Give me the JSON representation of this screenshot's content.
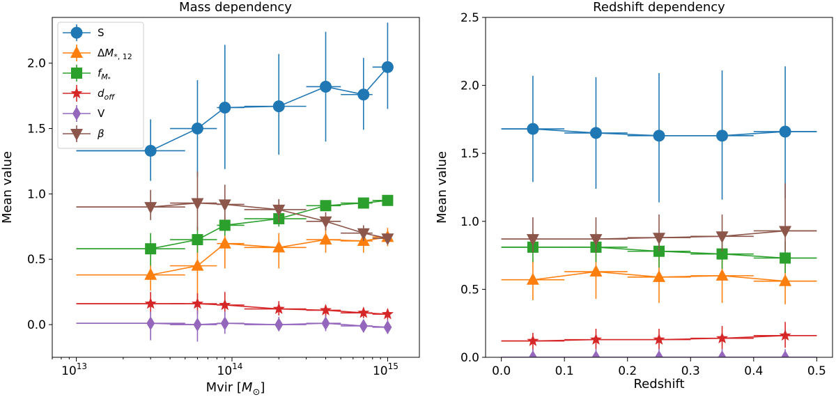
{
  "chart_data": [
    {
      "type": "scatter",
      "title": "Mass dependency",
      "xlabel": "Mvir [M⊙]",
      "ylabel": "Mean value",
      "xscale": "log",
      "xlim": [
        7000000000000.0,
        1600000000000000.0
      ],
      "ylim": [
        -0.25,
        2.35
      ],
      "xticks": [
        10000000000000.0,
        100000000000000.0,
        1000000000000000.0
      ],
      "xtick_labels": [
        "10",
        "10",
        "10"
      ],
      "xtick_exponents": [
        "13",
        "14",
        "15"
      ],
      "yticks": [
        0.0,
        0.5,
        1.0,
        1.5,
        2.0
      ],
      "ytick_labels": [
        "0.0",
        "0.5",
        "1.0",
        "1.5",
        "2.0"
      ],
      "legend": {
        "location": "upper-left"
      },
      "series": [
        {
          "name": "S",
          "color": "#1f77b4",
          "marker": "circle",
          "x": [
            30000000000000.0,
            60000000000000.0,
            90000000000000.0,
            200000000000000.0,
            400000000000000.0,
            700000000000000.0,
            1000000000000000.0
          ],
          "y": [
            1.33,
            1.5,
            1.66,
            1.67,
            1.82,
            1.76,
            1.97
          ],
          "xlo": [
            10000000000000.0,
            40000000000000.0,
            80000000000000.0,
            120000000000000.0,
            300000000000000.0,
            500000000000000.0,
            800000000000000.0
          ],
          "xhi": [
            50000000000000.0,
            80000000000000.0,
            120000000000000.0,
            300000000000000.0,
            500000000000000.0,
            800000000000000.0,
            1000000000000000.0
          ],
          "ylo": [
            1.1,
            1.13,
            1.19,
            1.3,
            1.4,
            1.49,
            1.65
          ],
          "yhi": [
            1.57,
            1.87,
            2.14,
            2.07,
            2.24,
            2.04,
            2.31
          ],
          "line_x": [
            10000000000000.0,
            30000000000000.0,
            60000000000000.0,
            90000000000000.0,
            200000000000000.0,
            400000000000000.0,
            700000000000000.0,
            1000000000000000.0
          ],
          "line_y": [
            1.33,
            1.33,
            1.5,
            1.66,
            1.67,
            1.82,
            1.76,
            1.97
          ]
        },
        {
          "name": "ΔM*, 12",
          "color": "#ff7f0e",
          "marker": "triangle-up",
          "x": [
            30000000000000.0,
            60000000000000.0,
            90000000000000.0,
            200000000000000.0,
            400000000000000.0,
            700000000000000.0,
            1000000000000000.0
          ],
          "y": [
            0.38,
            0.45,
            0.62,
            0.59,
            0.65,
            0.64,
            0.67
          ],
          "xlo": [
            10000000000000.0,
            40000000000000.0,
            80000000000000.0,
            120000000000000.0,
            300000000000000.0,
            500000000000000.0,
            800000000000000.0
          ],
          "xhi": [
            50000000000000.0,
            80000000000000.0,
            120000000000000.0,
            300000000000000.0,
            500000000000000.0,
            800000000000000.0,
            1000000000000000.0
          ],
          "ylo": [
            0.26,
            0.2,
            0.43,
            0.43,
            0.55,
            0.55,
            0.6
          ],
          "yhi": [
            0.5,
            0.65,
            0.75,
            0.7,
            0.75,
            0.73,
            0.74
          ],
          "line_x": [
            10000000000000.0,
            30000000000000.0,
            60000000000000.0,
            90000000000000.0,
            200000000000000.0,
            400000000000000.0,
            700000000000000.0,
            1000000000000000.0
          ],
          "line_y": [
            0.38,
            0.38,
            0.45,
            0.62,
            0.59,
            0.65,
            0.64,
            0.67
          ]
        },
        {
          "name": "fM*",
          "color": "#2ca02c",
          "marker": "square",
          "x": [
            30000000000000.0,
            60000000000000.0,
            90000000000000.0,
            200000000000000.0,
            400000000000000.0,
            700000000000000.0,
            1000000000000000.0
          ],
          "y": [
            0.58,
            0.65,
            0.76,
            0.81,
            0.91,
            0.93,
            0.95
          ],
          "xlo": [
            10000000000000.0,
            40000000000000.0,
            80000000000000.0,
            120000000000000.0,
            300000000000000.0,
            500000000000000.0,
            800000000000000.0
          ],
          "xhi": [
            50000000000000.0,
            80000000000000.0,
            120000000000000.0,
            300000000000000.0,
            500000000000000.0,
            800000000000000.0,
            1000000000000000.0
          ],
          "ylo": [
            0.45,
            0.55,
            0.68,
            0.75,
            0.87,
            0.9,
            0.93
          ],
          "yhi": [
            0.7,
            0.75,
            0.85,
            0.87,
            0.95,
            0.96,
            0.98
          ],
          "line_x": [
            10000000000000.0,
            30000000000000.0,
            60000000000000.0,
            90000000000000.0,
            200000000000000.0,
            400000000000000.0,
            700000000000000.0,
            1000000000000000.0
          ],
          "line_y": [
            0.58,
            0.58,
            0.65,
            0.76,
            0.81,
            0.91,
            0.93,
            0.95
          ]
        },
        {
          "name": "doff",
          "color": "#d62728",
          "marker": "star",
          "x": [
            30000000000000.0,
            60000000000000.0,
            90000000000000.0,
            200000000000000.0,
            400000000000000.0,
            700000000000000.0,
            1000000000000000.0
          ],
          "y": [
            0.16,
            0.16,
            0.15,
            0.12,
            0.11,
            0.09,
            0.08
          ],
          "xlo": [
            10000000000000.0,
            40000000000000.0,
            80000000000000.0,
            120000000000000.0,
            300000000000000.0,
            500000000000000.0,
            800000000000000.0
          ],
          "xhi": [
            50000000000000.0,
            80000000000000.0,
            120000000000000.0,
            300000000000000.0,
            500000000000000.0,
            800000000000000.0,
            1000000000000000.0
          ],
          "ylo": [
            0.08,
            0.08,
            0.07,
            0.07,
            0.06,
            0.05,
            0.04
          ],
          "yhi": [
            0.25,
            0.24,
            0.25,
            0.18,
            0.15,
            0.13,
            0.12
          ],
          "line_x": [
            10000000000000.0,
            30000000000000.0,
            60000000000000.0,
            90000000000000.0,
            200000000000000.0,
            400000000000000.0,
            700000000000000.0,
            1000000000000000.0
          ],
          "line_y": [
            0.16,
            0.16,
            0.16,
            0.15,
            0.12,
            0.11,
            0.09,
            0.08
          ]
        },
        {
          "name": "V",
          "color": "#9467bd",
          "marker": "thin-diamond",
          "x": [
            30000000000000.0,
            60000000000000.0,
            90000000000000.0,
            200000000000000.0,
            400000000000000.0,
            700000000000000.0,
            1000000000000000.0
          ],
          "y": [
            0.01,
            0.0,
            0.01,
            0.0,
            0.01,
            -0.01,
            -0.02
          ],
          "xlo": [
            10000000000000.0,
            40000000000000.0,
            80000000000000.0,
            120000000000000.0,
            300000000000000.0,
            500000000000000.0,
            800000000000000.0
          ],
          "xhi": [
            50000000000000.0,
            80000000000000.0,
            120000000000000.0,
            300000000000000.0,
            500000000000000.0,
            800000000000000.0,
            1000000000000000.0
          ],
          "ylo": [
            -0.12,
            -0.13,
            -0.07,
            -0.05,
            -0.05,
            -0.06,
            -0.07
          ],
          "yhi": [
            0.1,
            0.11,
            0.1,
            0.06,
            0.07,
            0.04,
            0.04
          ],
          "line_x": [
            10000000000000.0,
            30000000000000.0,
            60000000000000.0,
            90000000000000.0,
            200000000000000.0,
            400000000000000.0,
            700000000000000.0,
            1000000000000000.0
          ],
          "line_y": [
            0.01,
            0.01,
            0.0,
            0.01,
            0.0,
            0.01,
            -0.01,
            -0.02
          ]
        },
        {
          "name": "β",
          "color": "#8c564b",
          "marker": "triangle-down",
          "x": [
            30000000000000.0,
            60000000000000.0,
            90000000000000.0,
            200000000000000.0,
            400000000000000.0,
            700000000000000.0,
            1000000000000000.0
          ],
          "y": [
            0.9,
            0.93,
            0.92,
            0.88,
            0.79,
            0.7,
            0.66
          ],
          "xlo": [
            10000000000000.0,
            40000000000000.0,
            80000000000000.0,
            120000000000000.0,
            300000000000000.0,
            500000000000000.0,
            800000000000000.0
          ],
          "xhi": [
            50000000000000.0,
            80000000000000.0,
            120000000000000.0,
            300000000000000.0,
            500000000000000.0,
            800000000000000.0,
            1000000000000000.0
          ],
          "ylo": [
            0.8,
            0.72,
            0.8,
            0.78,
            0.72,
            0.64,
            0.62
          ],
          "yhi": [
            1.03,
            1.17,
            1.07,
            0.96,
            0.86,
            0.76,
            0.7
          ],
          "line_x": [
            10000000000000.0,
            30000000000000.0,
            60000000000000.0,
            90000000000000.0,
            200000000000000.0,
            400000000000000.0,
            700000000000000.0,
            1000000000000000.0
          ],
          "line_y": [
            0.9,
            0.9,
            0.93,
            0.92,
            0.88,
            0.79,
            0.7,
            0.66
          ]
        }
      ]
    },
    {
      "type": "scatter",
      "title": "Redshift dependency",
      "xlabel": "Redshift",
      "ylabel": "Mean value",
      "xscale": "linear",
      "xlim": [
        -0.025,
        0.525
      ],
      "ylim": [
        0.0,
        2.5
      ],
      "xticks": [
        0.0,
        0.1,
        0.2,
        0.3,
        0.4,
        0.5
      ],
      "xtick_labels": [
        "0.0",
        "0.1",
        "0.2",
        "0.3",
        "0.4",
        "0.5"
      ],
      "yticks": [
        0.0,
        0.5,
        1.0,
        1.5,
        2.0,
        2.5
      ],
      "ytick_labels": [
        "0.0",
        "0.5",
        "1.0",
        "1.5",
        "2.0",
        "2.5"
      ],
      "series": [
        {
          "name": "S",
          "color": "#1f77b4",
          "marker": "circle",
          "x": [
            0.05,
            0.15,
            0.25,
            0.35,
            0.45
          ],
          "y": [
            1.68,
            1.65,
            1.63,
            1.63,
            1.66
          ],
          "xlo": [
            0.0,
            0.1,
            0.2,
            0.3,
            0.4
          ],
          "xhi": [
            0.1,
            0.2,
            0.3,
            0.4,
            0.5
          ],
          "ylo": [
            1.29,
            1.24,
            1.14,
            1.16,
            1.17
          ],
          "yhi": [
            2.07,
            2.06,
            2.09,
            2.11,
            2.14
          ],
          "line_x": [
            0.0,
            0.05,
            0.15,
            0.25,
            0.35,
            0.45,
            0.5
          ],
          "line_y": [
            1.68,
            1.68,
            1.65,
            1.63,
            1.63,
            1.66,
            1.66
          ]
        },
        {
          "name": "ΔM*, 12",
          "color": "#ff7f0e",
          "marker": "triangle-up",
          "x": [
            0.05,
            0.15,
            0.25,
            0.35,
            0.45
          ],
          "y": [
            0.57,
            0.63,
            0.59,
            0.6,
            0.56
          ],
          "xlo": [
            0.0,
            0.1,
            0.2,
            0.3,
            0.4
          ],
          "xhi": [
            0.1,
            0.2,
            0.3,
            0.4,
            0.5
          ],
          "ylo": [
            0.42,
            0.43,
            0.4,
            0.4,
            0.39
          ],
          "yhi": [
            0.72,
            0.79,
            0.77,
            0.79,
            0.73
          ],
          "line_x": [
            0.0,
            0.05,
            0.15,
            0.25,
            0.35,
            0.45,
            0.5
          ],
          "line_y": [
            0.57,
            0.57,
            0.63,
            0.59,
            0.6,
            0.56,
            0.56
          ]
        },
        {
          "name": "fM*",
          "color": "#2ca02c",
          "marker": "square",
          "x": [
            0.05,
            0.15,
            0.25,
            0.35,
            0.45
          ],
          "y": [
            0.81,
            0.81,
            0.78,
            0.76,
            0.73
          ],
          "xlo": [
            0.0,
            0.1,
            0.2,
            0.3,
            0.4
          ],
          "xhi": [
            0.1,
            0.2,
            0.3,
            0.4,
            0.5
          ],
          "ylo": [
            0.7,
            0.7,
            0.66,
            0.65,
            0.62
          ],
          "yhi": [
            0.92,
            0.92,
            0.89,
            0.88,
            0.85
          ],
          "line_x": [
            0.0,
            0.05,
            0.15,
            0.25,
            0.35,
            0.45,
            0.5
          ],
          "line_y": [
            0.81,
            0.81,
            0.81,
            0.78,
            0.76,
            0.73,
            0.73
          ]
        },
        {
          "name": "doff",
          "color": "#d62728",
          "marker": "star",
          "x": [
            0.05,
            0.15,
            0.25,
            0.35,
            0.45
          ],
          "y": [
            0.12,
            0.13,
            0.13,
            0.14,
            0.16
          ],
          "xlo": [
            0.0,
            0.1,
            0.2,
            0.3,
            0.4
          ],
          "xhi": [
            0.1,
            0.2,
            0.3,
            0.4,
            0.5
          ],
          "ylo": [
            0.05,
            0.06,
            0.06,
            0.06,
            0.07
          ],
          "yhi": [
            0.18,
            0.21,
            0.21,
            0.23,
            0.26
          ],
          "line_x": [
            0.0,
            0.05,
            0.15,
            0.25,
            0.35,
            0.45,
            0.5
          ],
          "line_y": [
            0.12,
            0.12,
            0.13,
            0.13,
            0.14,
            0.16,
            0.16
          ]
        },
        {
          "name": "V",
          "color": "#9467bd",
          "marker": "thin-diamond",
          "x": [
            0.05,
            0.15,
            0.25,
            0.35,
            0.45
          ],
          "y": [
            0.0,
            0.0,
            0.0,
            0.0,
            0.0
          ],
          "xlo": [
            0.0,
            0.1,
            0.2,
            0.3,
            0.4
          ],
          "xhi": [
            0.1,
            0.2,
            0.3,
            0.4,
            0.5
          ],
          "ylo": [
            -0.1,
            -0.1,
            -0.1,
            -0.1,
            -0.1
          ],
          "yhi": [
            0.06,
            0.06,
            0.06,
            0.06,
            0.06
          ],
          "line_x": [
            0.0,
            0.05,
            0.15,
            0.25,
            0.35,
            0.45,
            0.5
          ],
          "line_y": [
            0.0,
            0.0,
            0.0,
            0.0,
            0.0,
            0.0,
            0.0
          ]
        },
        {
          "name": "β",
          "color": "#8c564b",
          "marker": "triangle-down",
          "x": [
            0.05,
            0.15,
            0.25,
            0.35,
            0.45
          ],
          "y": [
            0.87,
            0.87,
            0.88,
            0.89,
            0.93
          ],
          "xlo": [
            0.0,
            0.1,
            0.2,
            0.3,
            0.4
          ],
          "xhi": [
            0.1,
            0.2,
            0.3,
            0.4,
            0.5
          ],
          "ylo": [
            0.77,
            0.77,
            0.78,
            0.78,
            0.78
          ],
          "yhi": [
            1.03,
            1.03,
            1.05,
            1.05,
            1.28
          ],
          "line_x": [
            0.0,
            0.05,
            0.15,
            0.25,
            0.35,
            0.45,
            0.5
          ],
          "line_y": [
            0.87,
            0.87,
            0.87,
            0.88,
            0.89,
            0.93,
            0.93
          ]
        }
      ]
    }
  ]
}
